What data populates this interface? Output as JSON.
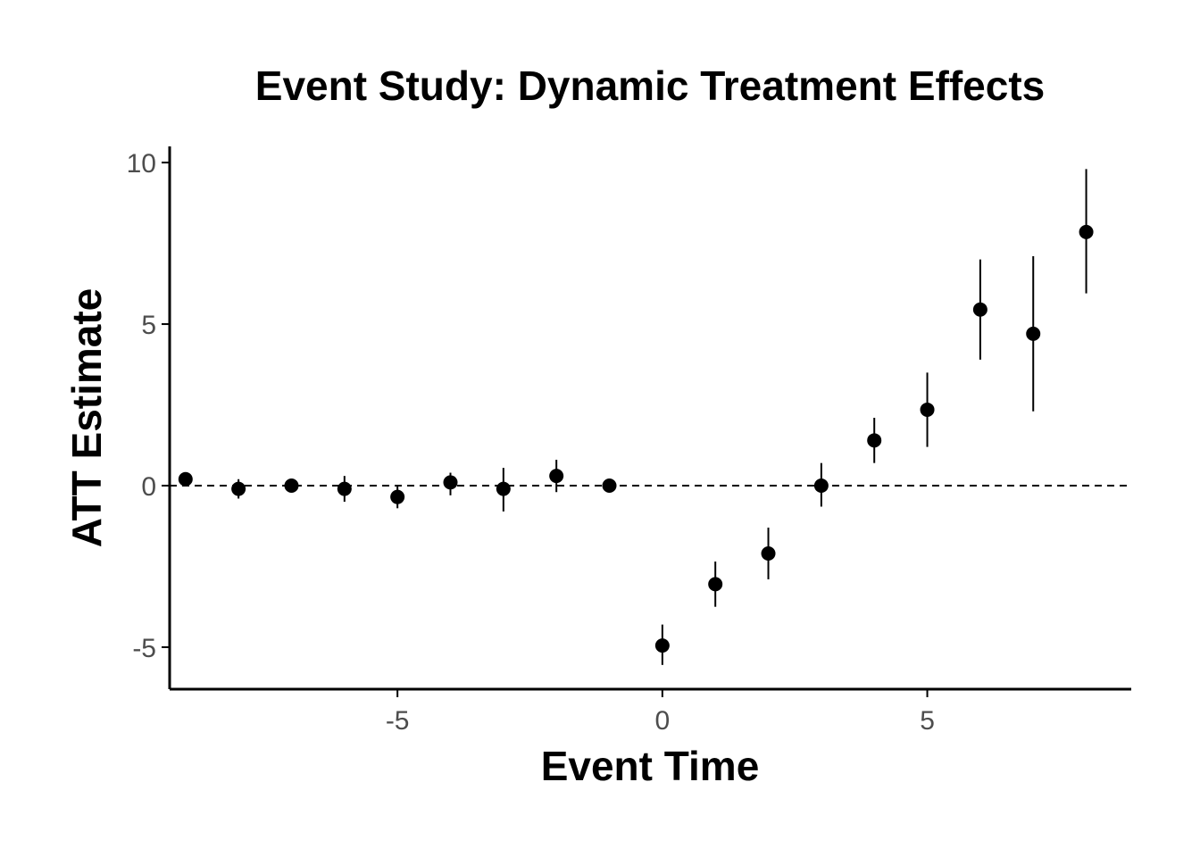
{
  "chart_data": {
    "type": "scatter",
    "title": "Event Study: Dynamic Treatment Effects",
    "xlabel": "Event Time",
    "ylabel": "ATT Estimate",
    "xlim": [
      -9.3,
      8.85
    ],
    "ylim": [
      -6.3,
      10.5
    ],
    "x_ticks": [
      -5,
      0,
      5
    ],
    "x_tick_labels": [
      "-5",
      "0",
      "5"
    ],
    "y_ticks": [
      -5,
      0,
      5,
      10
    ],
    "y_tick_labels": [
      "-5",
      "0",
      "5",
      "10"
    ],
    "reference_line": {
      "y": 0,
      "style": "dashed"
    },
    "grid": false,
    "legend": "none",
    "colors": {
      "point": "#000000",
      "axis": "#000000",
      "tick_text": "#4d4d4d"
    },
    "series": [
      {
        "name": "ATT",
        "points": [
          {
            "x": -9,
            "y": 0.2,
            "lo": 0.2,
            "hi": 0.2
          },
          {
            "x": -8,
            "y": -0.1,
            "lo": -0.4,
            "hi": 0.2
          },
          {
            "x": -7,
            "y": 0.0,
            "lo": -0.2,
            "hi": 0.2
          },
          {
            "x": -6,
            "y": -0.1,
            "lo": -0.5,
            "hi": 0.3
          },
          {
            "x": -5,
            "y": -0.35,
            "lo": -0.7,
            "hi": 0.0
          },
          {
            "x": -4,
            "y": 0.1,
            "lo": -0.3,
            "hi": 0.4
          },
          {
            "x": -3,
            "y": -0.1,
            "lo": -0.8,
            "hi": 0.55
          },
          {
            "x": -2,
            "y": 0.3,
            "lo": -0.2,
            "hi": 0.8
          },
          {
            "x": -1,
            "y": 0.0,
            "lo": 0.0,
            "hi": 0.0
          },
          {
            "x": 0,
            "y": -4.95,
            "lo": -5.55,
            "hi": -4.3
          },
          {
            "x": 1,
            "y": -3.05,
            "lo": -3.75,
            "hi": -2.35
          },
          {
            "x": 2,
            "y": -2.1,
            "lo": -2.9,
            "hi": -1.3
          },
          {
            "x": 3,
            "y": 0.0,
            "lo": -0.65,
            "hi": 0.7
          },
          {
            "x": 4,
            "y": 1.4,
            "lo": 0.7,
            "hi": 2.1
          },
          {
            "x": 5,
            "y": 2.35,
            "lo": 1.2,
            "hi": 3.5
          },
          {
            "x": 6,
            "y": 5.45,
            "lo": 3.9,
            "hi": 7.0
          },
          {
            "x": 7,
            "y": 4.7,
            "lo": 2.3,
            "hi": 7.1
          },
          {
            "x": 8,
            "y": 7.85,
            "lo": 5.95,
            "hi": 9.8
          }
        ]
      }
    ]
  }
}
